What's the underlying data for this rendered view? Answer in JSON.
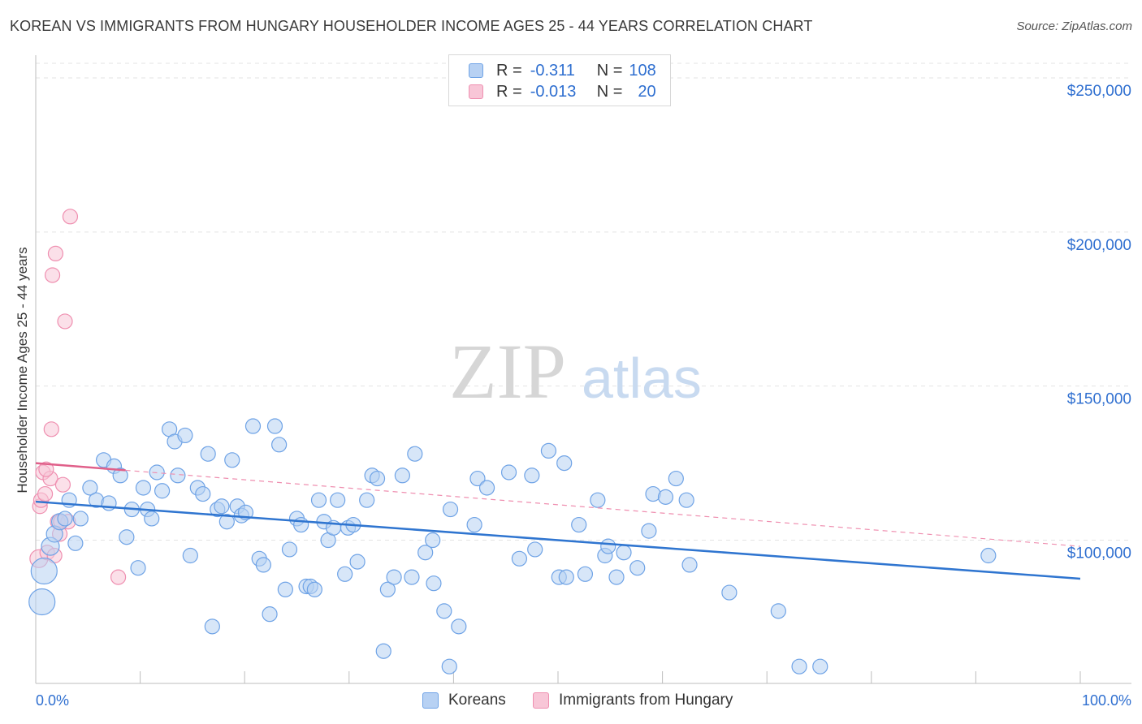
{
  "header": {
    "title": "KOREAN VS IMMIGRANTS FROM HUNGARY HOUSEHOLDER INCOME AGES 25 - 44 YEARS CORRELATION CHART",
    "source": "Source: ZipAtlas.com"
  },
  "legend": {
    "r_label": "R =",
    "n_label": "N =",
    "koreans": {
      "r": "-0.311",
      "n": "108"
    },
    "hungary": {
      "r": "-0.013",
      "n": "20"
    }
  },
  "watermark": {
    "zip": "ZIP",
    "atlas": "atlas"
  },
  "colors": {
    "blue": "#6fa3e6",
    "blue_fill": "#b7d1f3",
    "blue_line": "#2f75d0",
    "pink": "#ef8fb0",
    "pink_fill": "#f8c6d7",
    "pink_line": "#e0608a",
    "tick_label": "#2f6fd0",
    "grid": "#e3e3e3"
  },
  "chart_data": {
    "type": "scatter",
    "title": "KOREAN VS IMMIGRANTS FROM HUNGARY HOUSEHOLDER INCOME AGES 25 - 44 YEARS CORRELATION CHART",
    "xlabel": "",
    "ylabel": "Householder Income Ages 25 - 44 years",
    "xlim": [
      0,
      100
    ],
    "ylim": [
      58000,
      260000
    ],
    "x_tick_labels": [
      "0.0%",
      "100.0%"
    ],
    "y_ticks": [
      100000,
      150000,
      200000,
      250000
    ],
    "y_tick_labels": [
      "$100,000",
      "$150,000",
      "$200,000",
      "$250,000"
    ],
    "series": [
      {
        "name": "Koreans",
        "color": "#6fa3e6",
        "r": -0.311,
        "n": 108,
        "trend": {
          "x": [
            0,
            100
          ],
          "y": [
            112500,
            87500
          ],
          "style": "solid"
        },
        "points": [
          {
            "x": 0.6,
            "y": 80000,
            "s": 16
          },
          {
            "x": 0.8,
            "y": 90000,
            "s": 16
          },
          {
            "x": 1.4,
            "y": 98000,
            "s": 11
          },
          {
            "x": 1.8,
            "y": 102000,
            "s": 10
          },
          {
            "x": 2.3,
            "y": 106000,
            "s": 10
          },
          {
            "x": 2.8,
            "y": 107000,
            "s": 9
          },
          {
            "x": 3.2,
            "y": 113000,
            "s": 9
          },
          {
            "x": 3.8,
            "y": 99000,
            "s": 9
          },
          {
            "x": 4.3,
            "y": 107000,
            "s": 9
          },
          {
            "x": 5.2,
            "y": 117000,
            "s": 9
          },
          {
            "x": 5.8,
            "y": 113000,
            "s": 9
          },
          {
            "x": 6.5,
            "y": 126000,
            "s": 9
          },
          {
            "x": 7.0,
            "y": 112000,
            "s": 9
          },
          {
            "x": 7.5,
            "y": 124000,
            "s": 9
          },
          {
            "x": 8.1,
            "y": 121000,
            "s": 9
          },
          {
            "x": 8.7,
            "y": 101000,
            "s": 9
          },
          {
            "x": 9.2,
            "y": 110000,
            "s": 9
          },
          {
            "x": 9.8,
            "y": 91000,
            "s": 9
          },
          {
            "x": 10.3,
            "y": 117000,
            "s": 9
          },
          {
            "x": 10.7,
            "y": 110000,
            "s": 9
          },
          {
            "x": 11.1,
            "y": 107000,
            "s": 9
          },
          {
            "x": 11.6,
            "y": 122000,
            "s": 9
          },
          {
            "x": 12.1,
            "y": 116000,
            "s": 9
          },
          {
            "x": 12.8,
            "y": 136000,
            "s": 9
          },
          {
            "x": 13.3,
            "y": 132000,
            "s": 9
          },
          {
            "x": 13.6,
            "y": 121000,
            "s": 9
          },
          {
            "x": 14.3,
            "y": 134000,
            "s": 9
          },
          {
            "x": 14.8,
            "y": 95000,
            "s": 9
          },
          {
            "x": 15.5,
            "y": 117000,
            "s": 9
          },
          {
            "x": 16.0,
            "y": 115000,
            "s": 9
          },
          {
            "x": 16.5,
            "y": 128000,
            "s": 9
          },
          {
            "x": 16.9,
            "y": 72000,
            "s": 9
          },
          {
            "x": 17.4,
            "y": 110000,
            "s": 9
          },
          {
            "x": 17.8,
            "y": 111000,
            "s": 9
          },
          {
            "x": 18.3,
            "y": 106000,
            "s": 9
          },
          {
            "x": 18.8,
            "y": 126000,
            "s": 9
          },
          {
            "x": 19.3,
            "y": 111000,
            "s": 9
          },
          {
            "x": 19.7,
            "y": 108000,
            "s": 9
          },
          {
            "x": 20.1,
            "y": 109000,
            "s": 9
          },
          {
            "x": 20.8,
            "y": 137000,
            "s": 9
          },
          {
            "x": 21.4,
            "y": 94000,
            "s": 9
          },
          {
            "x": 21.8,
            "y": 92000,
            "s": 9
          },
          {
            "x": 22.4,
            "y": 76000,
            "s": 9
          },
          {
            "x": 22.9,
            "y": 137000,
            "s": 9
          },
          {
            "x": 23.3,
            "y": 131000,
            "s": 9
          },
          {
            "x": 23.9,
            "y": 84000,
            "s": 9
          },
          {
            "x": 24.3,
            "y": 97000,
            "s": 9
          },
          {
            "x": 25.0,
            "y": 107000,
            "s": 9
          },
          {
            "x": 25.4,
            "y": 105000,
            "s": 9
          },
          {
            "x": 25.9,
            "y": 85000,
            "s": 9
          },
          {
            "x": 26.3,
            "y": 85000,
            "s": 9
          },
          {
            "x": 26.7,
            "y": 84000,
            "s": 9
          },
          {
            "x": 27.1,
            "y": 113000,
            "s": 9
          },
          {
            "x": 27.6,
            "y": 106000,
            "s": 9
          },
          {
            "x": 28.0,
            "y": 100000,
            "s": 9
          },
          {
            "x": 28.5,
            "y": 104000,
            "s": 9
          },
          {
            "x": 28.9,
            "y": 113000,
            "s": 9
          },
          {
            "x": 29.6,
            "y": 89000,
            "s": 9
          },
          {
            "x": 29.9,
            "y": 104000,
            "s": 9
          },
          {
            "x": 30.4,
            "y": 105000,
            "s": 9
          },
          {
            "x": 30.8,
            "y": 93000,
            "s": 9
          },
          {
            "x": 31.7,
            "y": 113000,
            "s": 9
          },
          {
            "x": 32.2,
            "y": 121000,
            "s": 9
          },
          {
            "x": 32.7,
            "y": 120000,
            "s": 9
          },
          {
            "x": 33.3,
            "y": 64000,
            "s": 9
          },
          {
            "x": 33.7,
            "y": 84000,
            "s": 9
          },
          {
            "x": 34.3,
            "y": 88000,
            "s": 9
          },
          {
            "x": 35.1,
            "y": 121000,
            "s": 9
          },
          {
            "x": 36.0,
            "y": 88000,
            "s": 9
          },
          {
            "x": 36.3,
            "y": 128000,
            "s": 9
          },
          {
            "x": 37.3,
            "y": 96000,
            "s": 9
          },
          {
            "x": 38.0,
            "y": 100000,
            "s": 9
          },
          {
            "x": 38.1,
            "y": 86000,
            "s": 9
          },
          {
            "x": 39.1,
            "y": 77000,
            "s": 9
          },
          {
            "x": 39.6,
            "y": 59000,
            "s": 9
          },
          {
            "x": 39.7,
            "y": 110000,
            "s": 9
          },
          {
            "x": 40.5,
            "y": 72000,
            "s": 9
          },
          {
            "x": 42.0,
            "y": 105000,
            "s": 9
          },
          {
            "x": 42.3,
            "y": 120000,
            "s": 9
          },
          {
            "x": 43.2,
            "y": 117000,
            "s": 9
          },
          {
            "x": 45.3,
            "y": 122000,
            "s": 9
          },
          {
            "x": 46.3,
            "y": 94000,
            "s": 9
          },
          {
            "x": 47.5,
            "y": 121000,
            "s": 9
          },
          {
            "x": 47.8,
            "y": 97000,
            "s": 9
          },
          {
            "x": 49.1,
            "y": 129000,
            "s": 9
          },
          {
            "x": 50.1,
            "y": 88000,
            "s": 9
          },
          {
            "x": 50.6,
            "y": 125000,
            "s": 9
          },
          {
            "x": 50.8,
            "y": 88000,
            "s": 9
          },
          {
            "x": 52.0,
            "y": 105000,
            "s": 9
          },
          {
            "x": 52.6,
            "y": 89000,
            "s": 9
          },
          {
            "x": 53.8,
            "y": 113000,
            "s": 9
          },
          {
            "x": 54.5,
            "y": 95000,
            "s": 9
          },
          {
            "x": 54.8,
            "y": 98000,
            "s": 9
          },
          {
            "x": 55.6,
            "y": 88000,
            "s": 9
          },
          {
            "x": 56.3,
            "y": 96000,
            "s": 9
          },
          {
            "x": 57.6,
            "y": 91000,
            "s": 9
          },
          {
            "x": 58.7,
            "y": 103000,
            "s": 9
          },
          {
            "x": 59.1,
            "y": 115000,
            "s": 9
          },
          {
            "x": 60.3,
            "y": 114000,
            "s": 9
          },
          {
            "x": 61.3,
            "y": 120000,
            "s": 9
          },
          {
            "x": 62.3,
            "y": 113000,
            "s": 9
          },
          {
            "x": 62.6,
            "y": 92000,
            "s": 9
          },
          {
            "x": 66.4,
            "y": 83000,
            "s": 9
          },
          {
            "x": 71.1,
            "y": 77000,
            "s": 9
          },
          {
            "x": 73.1,
            "y": 59000,
            "s": 9
          },
          {
            "x": 75.1,
            "y": 59000,
            "s": 9
          },
          {
            "x": 91.2,
            "y": 95000,
            "s": 9
          }
        ]
      },
      {
        "name": "Immigrants from Hungary",
        "color": "#ef8fb0",
        "r": -0.013,
        "n": 20,
        "trend": {
          "x": [
            0,
            100
          ],
          "y": [
            125000,
            98000
          ],
          "style": "solid-then-dashed",
          "solid_to_x": 8.6
        },
        "points": [
          {
            "x": 0.3,
            "y": 94000,
            "s": 11
          },
          {
            "x": 0.4,
            "y": 111000,
            "s": 9
          },
          {
            "x": 0.5,
            "y": 113000,
            "s": 9
          },
          {
            "x": 0.7,
            "y": 122000,
            "s": 9
          },
          {
            "x": 0.9,
            "y": 115000,
            "s": 9
          },
          {
            "x": 1.1,
            "y": 96000,
            "s": 9
          },
          {
            "x": 1.4,
            "y": 120000,
            "s": 9
          },
          {
            "x": 1.5,
            "y": 136000,
            "s": 9
          },
          {
            "x": 1.6,
            "y": 186000,
            "s": 9
          },
          {
            "x": 1.8,
            "y": 95000,
            "s": 9
          },
          {
            "x": 1.9,
            "y": 193000,
            "s": 9
          },
          {
            "x": 2.1,
            "y": 106000,
            "s": 9
          },
          {
            "x": 2.3,
            "y": 102000,
            "s": 9
          },
          {
            "x": 2.6,
            "y": 118000,
            "s": 9
          },
          {
            "x": 2.8,
            "y": 171000,
            "s": 9
          },
          {
            "x": 3.1,
            "y": 106000,
            "s": 9
          },
          {
            "x": 3.3,
            "y": 205000,
            "s": 9
          },
          {
            "x": 7.9,
            "y": 88000,
            "s": 9
          },
          {
            "x": 1.0,
            "y": 123000,
            "s": 9
          },
          {
            "x": 2.4,
            "y": 106000,
            "s": 9
          }
        ]
      }
    ]
  },
  "bottom_legend": {
    "koreans_label": "Koreans",
    "hungary_label": "Immigrants from Hungary"
  }
}
